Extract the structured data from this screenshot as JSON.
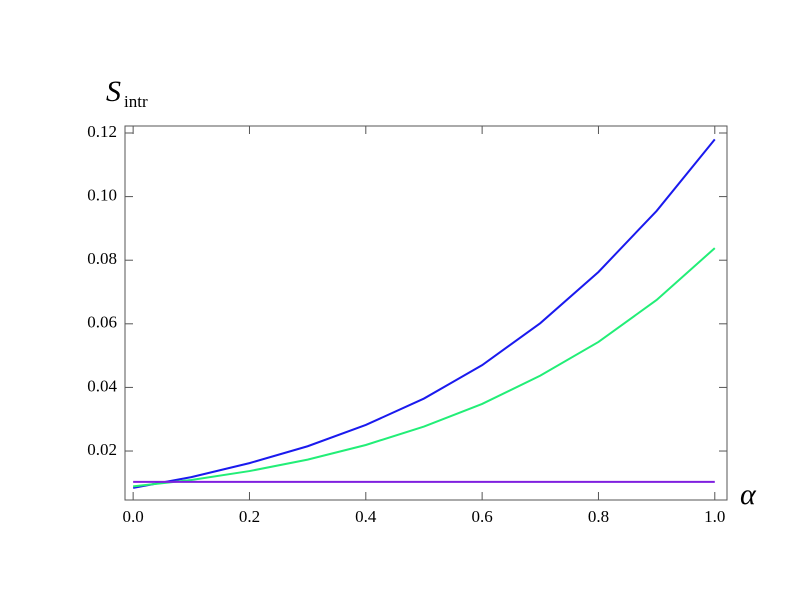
{
  "chart_data": {
    "type": "line",
    "ylabel": "S",
    "ylabel_sub": "intr",
    "xlabel": "α",
    "x": [
      0.0,
      0.1,
      0.2,
      0.3,
      0.4,
      0.5,
      0.6,
      0.7,
      0.8,
      0.9,
      1.0
    ],
    "series": [
      {
        "color": "#1a1aee",
        "values": [
          0.0084,
          0.0118,
          0.0162,
          0.0215,
          0.0282,
          0.0365,
          0.047,
          0.0602,
          0.0763,
          0.0955,
          0.118
        ]
      },
      {
        "color": "#22ee77",
        "values": [
          0.0089,
          0.0109,
          0.0137,
          0.0173,
          0.0219,
          0.0277,
          0.0348,
          0.0437,
          0.0543,
          0.0675,
          0.0838
        ]
      },
      {
        "color": "#7f1fdf",
        "values": [
          0.0103,
          0.0103,
          0.0103,
          0.0103,
          0.0103,
          0.0103,
          0.0103,
          0.0103,
          0.0103,
          0.0103,
          0.0103
        ]
      }
    ],
    "xlim": [
      -0.014,
      1.021
    ],
    "ylim": [
      0.0046,
      0.1222
    ],
    "xticks": [
      {
        "value": 0,
        "label": "0.0"
      },
      0.2,
      0.4,
      0.6,
      0.8,
      {
        "value": 1,
        "label": "1.0"
      }
    ],
    "yticks": [
      0.02,
      0.04,
      0.06,
      0.08,
      {
        "value": 0.1,
        "label": "0.10"
      },
      0.12
    ]
  }
}
